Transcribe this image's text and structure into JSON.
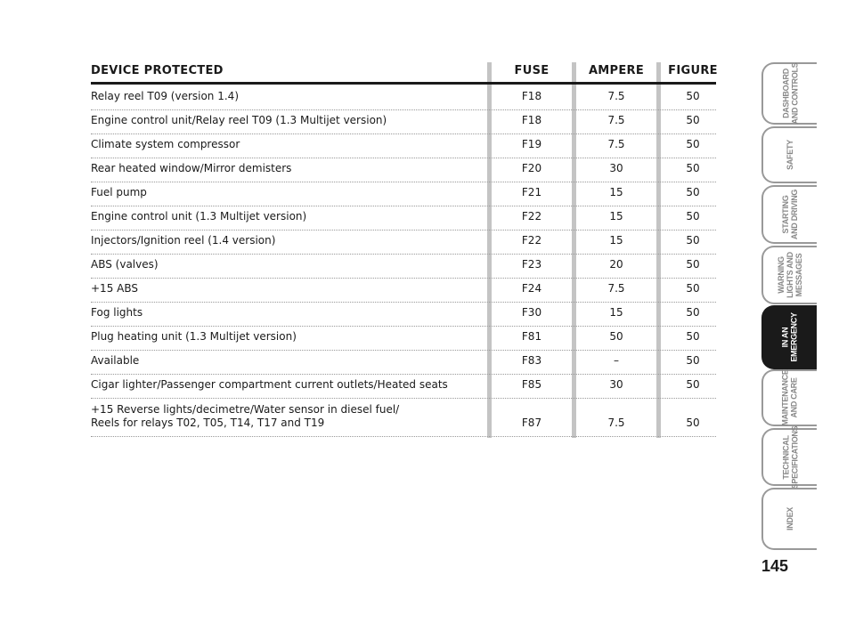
{
  "table": {
    "headers": {
      "device": "DEVICE PROTECTED",
      "fuse": "FUSE",
      "ampere": "AMPERE",
      "figure": "FIGURE"
    },
    "rows": [
      {
        "device": "Relay reel T09 (version 1.4)",
        "fuse": "F18",
        "ampere": "7.5",
        "figure": "50"
      },
      {
        "device": "Engine control unit/Relay reel T09 (1.3 Multijet version)",
        "fuse": "F18",
        "ampere": "7.5",
        "figure": "50"
      },
      {
        "device": "Climate system compressor",
        "fuse": "F19",
        "ampere": "7.5",
        "figure": "50"
      },
      {
        "device": "Rear heated window/Mirror demisters",
        "fuse": "F20",
        "ampere": "30",
        "figure": "50"
      },
      {
        "device": "Fuel pump",
        "fuse": "F21",
        "ampere": "15",
        "figure": "50"
      },
      {
        "device": "Engine control unit (1.3 Multijet version)",
        "fuse": "F22",
        "ampere": "15",
        "figure": "50"
      },
      {
        "device": "Injectors/Ignition reel (1.4 version)",
        "fuse": "F22",
        "ampere": "15",
        "figure": "50"
      },
      {
        "device": "ABS (valves)",
        "fuse": "F23",
        "ampere": "20",
        "figure": "50"
      },
      {
        "device": "+15 ABS",
        "fuse": "F24",
        "ampere": "7.5",
        "figure": "50"
      },
      {
        "device": "Fog lights",
        "fuse": "F30",
        "ampere": "15",
        "figure": "50"
      },
      {
        "device": "Plug heating unit (1.3 Multijet version)",
        "fuse": "F81",
        "ampere": "50",
        "figure": "50"
      },
      {
        "device": "Available",
        "fuse": "F83",
        "ampere": "–",
        "figure": "50"
      },
      {
        "device": "Cigar lighter/Passenger compartment current outlets/Heated seats",
        "fuse": "F85",
        "ampere": "30",
        "figure": "50"
      },
      {
        "device": "+15 Reverse lights/decimetre/Water sensor in diesel fuel/\nReels for relays T02, T05, T14, T17 and T19",
        "fuse": "F87",
        "ampere": "7.5",
        "figure": "50"
      }
    ]
  },
  "tabs": [
    {
      "label": "DASHBOARD\nAND CONTROLS",
      "active": false
    },
    {
      "label": "SAFETY",
      "active": false
    },
    {
      "label": "STARTING\nAND DRIVING",
      "active": false
    },
    {
      "label": "WARNING\nLIGHTS AND\nMESSAGES",
      "active": false
    },
    {
      "label": "IN AN\nEMERGENCY",
      "active": true
    },
    {
      "label": "MAINTENANCE\nAND CARE",
      "active": false
    },
    {
      "label": "TECHNICAL\nSPECIFICATIONS",
      "active": false
    },
    {
      "label": "INDEX",
      "active": false
    }
  ],
  "page_number": "145"
}
